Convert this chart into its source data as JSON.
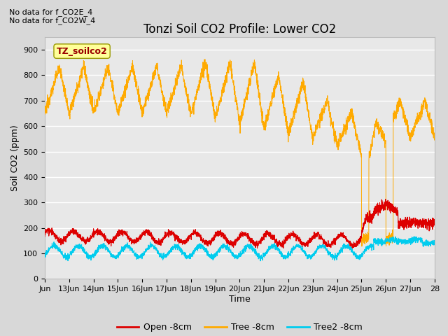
{
  "title": "Tonzi Soil CO2 Profile: Lower CO2",
  "ylabel": "Soil CO2 (ppm)",
  "xlabel": "Time",
  "note_line1": "No data for f_CO2E_4",
  "note_line2": "No data for f_CO2W_4",
  "legend_label_box": "TZ_soilco2",
  "ylim": [
    0,
    950
  ],
  "yticks": [
    0,
    100,
    200,
    300,
    400,
    500,
    600,
    700,
    800,
    900
  ],
  "xtick_labels": [
    "Jun",
    "13Jun",
    "14Jun",
    "15Jun",
    "16Jun",
    "17Jun",
    "18Jun",
    "19Jun",
    "20Jun",
    "21Jun",
    "22Jun",
    "23Jun",
    "24Jun",
    "25Jun",
    "26Jun",
    "27Jun",
    "28"
  ],
  "line_colors": {
    "open": "#dd0000",
    "tree": "#ffaa00",
    "tree2": "#00ccee"
  },
  "legend_labels": {
    "open": "Open -8cm",
    "tree": "Tree -8cm",
    "tree2": "Tree2 -8cm"
  },
  "fig_facecolor": "#d8d8d8",
  "plot_facecolor": "#e8e8e8",
  "grid_color": "#ffffff",
  "box_facecolor": "#ffff99",
  "box_edgecolor": "#999900",
  "box_textcolor": "#990000",
  "title_fontsize": 12,
  "axis_label_fontsize": 9,
  "tick_fontsize": 8,
  "legend_fontsize": 9,
  "note_fontsize": 8
}
